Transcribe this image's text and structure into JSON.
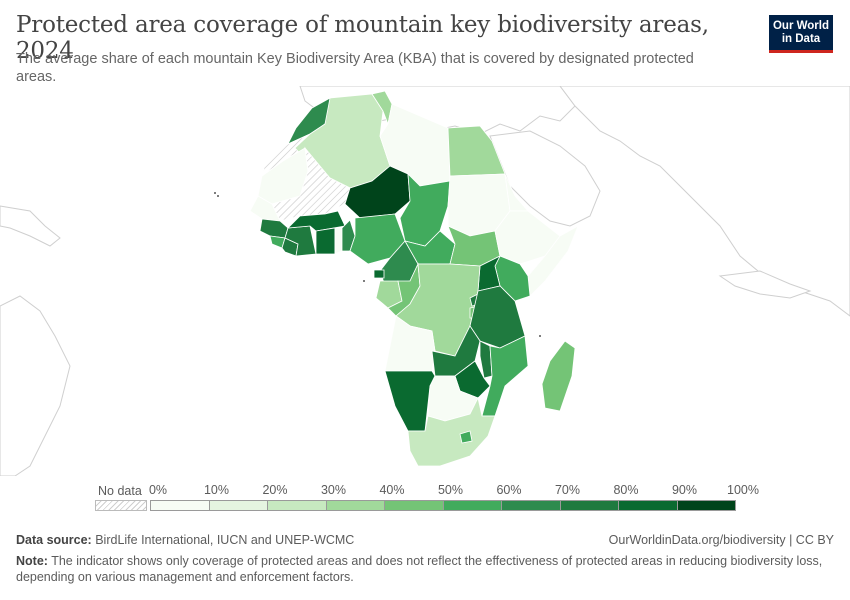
{
  "header": {
    "title": "Protected area coverage of mountain key biodiversity areas, 2024",
    "subtitle": "The average share of each mountain Key Biodiversity Area (KBA) that is covered by designated protected areas."
  },
  "logo": {
    "line1": "Our World",
    "line2": "in Data"
  },
  "legend": {
    "no_data_label": "No data",
    "ticks": [
      "0%",
      "10%",
      "20%",
      "30%",
      "40%",
      "50%",
      "60%",
      "70%",
      "80%",
      "90%",
      "100%"
    ],
    "colors": [
      "#f7fcf5",
      "#e5f5e0",
      "#c7e9c0",
      "#a1d99b",
      "#74c476",
      "#41ab5d",
      "#2e8b4e",
      "#1f7a3f",
      "#0a6a30",
      "#00441b"
    ]
  },
  "footer": {
    "source_label": "Data source:",
    "source_text": "BirdLife International, IUCN and UNEP-WCMC",
    "url_text": "OurWorldinData.org/biodiversity | CC BY",
    "note_label": "Note:",
    "note_text": "The indicator shows only coverage of protected areas and does not reflect the effectiveness of protected areas in reducing biodiversity loss, depending on various management and enforcement factors."
  },
  "map": {
    "colors": {
      "no_data": "#f4f4f4",
      "land_outline": "#cfcfcf",
      "border": "#ffffff"
    },
    "countries": [
      {
        "name": "Morocco",
        "value": 65
      },
      {
        "name": "Algeria",
        "value": 25
      },
      {
        "name": "Tunisia",
        "value": 35
      },
      {
        "name": "Libya",
        "value": 3
      },
      {
        "name": "Egypt",
        "value": 38
      },
      {
        "name": "Western Sahara"
      },
      {
        "name": "Mauritania",
        "value": 3
      },
      {
        "name": "Mali"
      },
      {
        "name": "Niger",
        "value": 95
      },
      {
        "name": "Chad",
        "value": 55
      },
      {
        "name": "Sudan",
        "value": 3
      },
      {
        "name": "Senegal",
        "value": 8
      },
      {
        "name": "Guinea",
        "value": 75
      },
      {
        "name": "Sierra Leone",
        "value": 55
      },
      {
        "name": "Liberia",
        "value": 70
      },
      {
        "name": "Côte d'Ivoire",
        "value": 72
      },
      {
        "name": "Burkina Faso",
        "value": 85
      },
      {
        "name": "Ghana",
        "value": 85
      },
      {
        "name": "Togo",
        "value": 5
      },
      {
        "name": "Benin",
        "value": 60
      },
      {
        "name": "Nigeria",
        "value": 55
      },
      {
        "name": "Cameroon",
        "value": 65
      },
      {
        "name": "Central African Republic",
        "value": 55
      },
      {
        "name": "South Sudan",
        "value": 40
      },
      {
        "name": "Ethiopia",
        "value": 8
      },
      {
        "name": "Eritrea",
        "value": 3
      },
      {
        "name": "Somalia",
        "value": 3
      },
      {
        "name": "Kenya",
        "value": 50
      },
      {
        "name": "Uganda",
        "value": 80
      },
      {
        "name": "Equatorial Guinea",
        "value": 85
      },
      {
        "name": "Gabon",
        "value": 35
      },
      {
        "name": "Republic of the Congo",
        "value": 45
      },
      {
        "name": "Democratic Republic of the Congo",
        "value": 35
      },
      {
        "name": "Rwanda",
        "value": 70
      },
      {
        "name": "Burundi",
        "value": 45
      },
      {
        "name": "Tanzania",
        "value": 70
      },
      {
        "name": "Angola",
        "value": 3
      },
      {
        "name": "Zambia",
        "value": 70
      },
      {
        "name": "Malawi",
        "value": 70
      },
      {
        "name": "Mozambique",
        "value": 50
      },
      {
        "name": "Zimbabwe",
        "value": 85
      },
      {
        "name": "Namibia",
        "value": 85
      },
      {
        "name": "Botswana",
        "value": 3
      },
      {
        "name": "South Africa",
        "value": 25
      },
      {
        "name": "Lesotho",
        "value": 55
      },
      {
        "name": "Madagascar",
        "value": 40
      }
    ]
  }
}
